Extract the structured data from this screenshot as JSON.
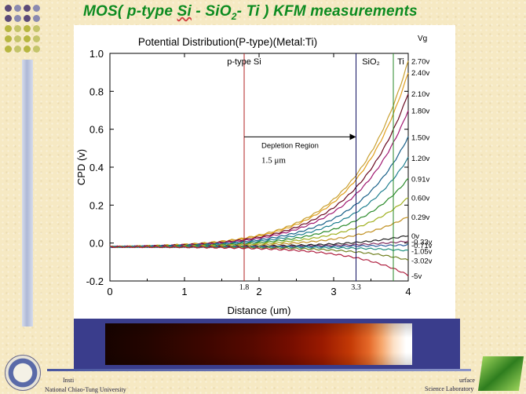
{
  "slide": {
    "title_parts": [
      "MOS( p-type ",
      "Si",
      " - SiO",
      "2",
      "- Ti ) KFM measurements"
    ],
    "footer_left_1": "Insti",
    "footer_left_2": "National Chiao-Tung University",
    "footer_right_1": "urface",
    "footer_right_2": "Science Laboratory",
    "decor_dot_colors": [
      "#5b4a78",
      "#8a8ab0",
      "#b7b640",
      "#c4c46a"
    ]
  },
  "chart_data": {
    "type": "line",
    "title": "Potential Distribution(P-type)(Metal:Ti)",
    "xlabel": "Distance (um)",
    "ylabel": "CPD (v)",
    "xlim": [
      0,
      4
    ],
    "ylim": [
      -0.2,
      1.0
    ],
    "xticks": [
      0,
      1,
      2,
      3,
      4
    ],
    "yticks": [
      -0.2,
      0.0,
      0.2,
      0.4,
      0.6,
      0.8,
      1.0
    ],
    "ytick_labels": [
      "-0.2",
      "0.0",
      "0.2",
      "0.4",
      "0.6",
      "0.8",
      "1.0"
    ],
    "vg_header": "Vg",
    "boundaries": [
      {
        "x": 1.8,
        "label": "1.8",
        "color": "#b02020"
      },
      {
        "x": 3.3,
        "label": "3.3",
        "color": "#101060"
      },
      {
        "x": 3.8,
        "label": "",
        "color": "#2a8a2a"
      }
    ],
    "regions": [
      {
        "label": "p-type Si",
        "x": 1.8
      },
      {
        "label": "SiO₂",
        "x": 3.5
      },
      {
        "label": "Ti",
        "x": 3.9
      }
    ],
    "annotation": {
      "label": "Depletion Region",
      "width_label": "1.5 μm",
      "x_start": 1.8,
      "x_end": 3.3,
      "y": 0.56
    },
    "series": [
      {
        "name": "2.70v",
        "end": 0.96,
        "color": "#c8a030"
      },
      {
        "name": "2.40v",
        "end": 0.9,
        "color": "#e0a020"
      },
      {
        "name": "2.10v",
        "end": 0.79,
        "color": "#6a0a20"
      },
      {
        "name": "1.80v",
        "end": 0.7,
        "color": "#a01870"
      },
      {
        "name": "1.50v",
        "end": 0.56,
        "color": "#186088"
      },
      {
        "name": "1.20v",
        "end": 0.45,
        "color": "#208090"
      },
      {
        "name": "0.91v",
        "end": 0.34,
        "color": "#2a8a2a"
      },
      {
        "name": "0.60v",
        "end": 0.24,
        "color": "#a0b020"
      },
      {
        "name": "0.29v",
        "end": 0.14,
        "color": "#c09020"
      },
      {
        "name": "0v",
        "end": 0.04,
        "color": "#202020"
      },
      {
        "name": "-0.33v",
        "end": 0.01,
        "color": "#803060"
      },
      {
        "name": "-0.71v",
        "end": -0.01,
        "color": "#3060a0"
      },
      {
        "name": "-1.05v",
        "end": -0.04,
        "color": "#209080"
      },
      {
        "name": "-3.02v",
        "end": -0.09,
        "color": "#708020"
      },
      {
        "name": "-5v",
        "end": -0.17,
        "color": "#b02040"
      }
    ]
  }
}
